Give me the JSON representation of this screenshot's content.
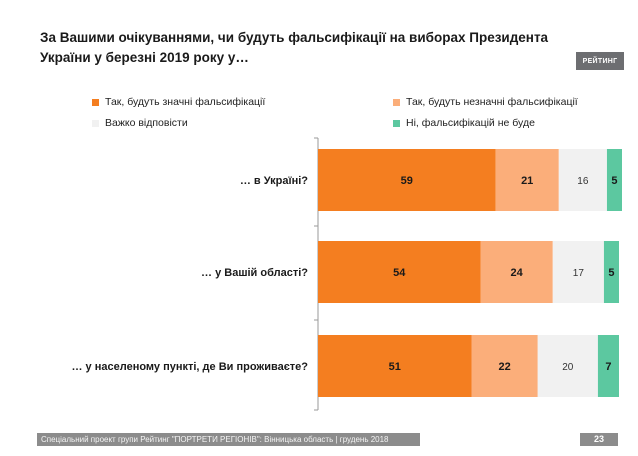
{
  "header": {
    "title": "За Вашими очікуваннями, чи будуть фальсифікації на виборах Президента України у березні 2019 року у…",
    "logo_text": "РЕЙТИНГ"
  },
  "footer": {
    "text": "Спеціальний проект групи Рейтинг \"ПОРТРЕТИ РЕГІОНІВ\": Вінницька область | грудень 2018",
    "page_number": "23"
  },
  "chart_data": {
    "type": "bar",
    "orientation": "horizontal",
    "stacked": true,
    "categories": [
      "… в Україні?",
      "… у Вашій області?",
      "… у населеному пункті, де Ви проживаєте?"
    ],
    "series": [
      {
        "name": "Так, будуть значні фальсифікації",
        "values": [
          59,
          54,
          51
        ],
        "color": "#f47e20",
        "label_color": "#1a1a1a",
        "label_bold": true
      },
      {
        "name": "Так, будуть незначні фальсифікації",
        "values": [
          21,
          24,
          22
        ],
        "color": "#fbae7a",
        "label_color": "#1a1a1a",
        "label_bold": true
      },
      {
        "name": "Важко відповісти",
        "values": [
          16,
          17,
          20
        ],
        "color": "#f1f1f1",
        "label_color": "#333333",
        "label_bold": false
      },
      {
        "name": "Ні, фальсифікацій не буде",
        "values": [
          5,
          5,
          7
        ],
        "color": "#5cc8a0",
        "label_color": "#1a1a1a",
        "label_bold": true
      }
    ],
    "xlim": [
      0,
      101
    ],
    "grid": false,
    "legend_position": "top"
  }
}
